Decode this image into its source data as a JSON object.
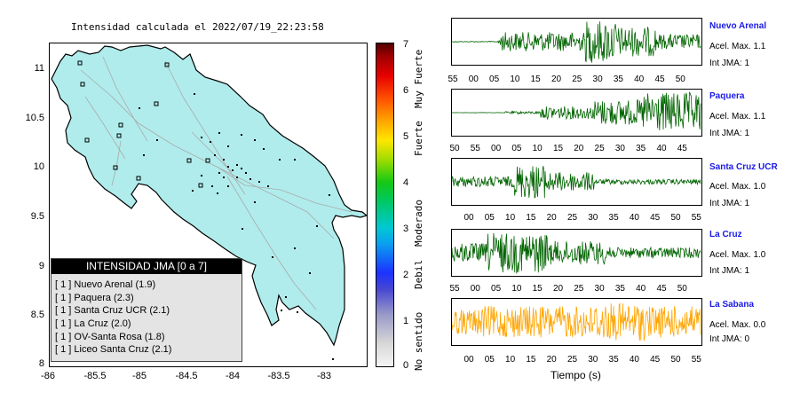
{
  "map": {
    "title": "Intensidad calculada el 2022/07/19_22:23:58",
    "yticks": [
      "11",
      "10.5",
      "10",
      "9.5",
      "9",
      "8.5",
      "8"
    ],
    "xticks": [
      "-86",
      "-85.5",
      "-85",
      "-84.5",
      "-84",
      "-83.5",
      "-83"
    ],
    "legend_title": "INTENSIDAD JMA [0 a 7]",
    "legend_items": [
      "[ 1 ]  Nuevo Arenal (1.9)",
      "[ 1 ]  Paquera (2.3)",
      "[ 1 ]  Santa Cruz UCR (2.1)",
      "[ 1 ]  La Cruz (2.0)",
      "[ 1 ]  OV-Santa Rosa (1.8)",
      "[ 1 ]  Liceo Santa Cruz (2.1)"
    ]
  },
  "scale": {
    "ticks": [
      "7",
      "6",
      "5",
      "4",
      "3",
      "2",
      "1",
      "0"
    ],
    "words": [
      "Muy Fuerte",
      "Fuerte",
      "Moderado",
      "Debil",
      "No sentido"
    ]
  },
  "chart_data": {
    "type": "line",
    "xlabel": "Tiempo (s)",
    "series": [
      {
        "name": "Nuevo Arenal",
        "color": "#006400",
        "accel": "Acel. Max. 1.1",
        "jma": "Int JMA: 1",
        "ticks": [
          "55",
          "00",
          "05",
          "10",
          "15",
          "20",
          "25",
          "30",
          "35",
          "40",
          "45",
          "50"
        ]
      },
      {
        "name": "Paquera",
        "color": "#006400",
        "accel": "Acel. Max. 1.1",
        "jma": "Int JMA: 1",
        "ticks": [
          "50",
          "55",
          "00",
          "05",
          "10",
          "15",
          "20",
          "25",
          "30",
          "35",
          "40",
          "45"
        ]
      },
      {
        "name": "Santa Cruz UCR",
        "color": "#006400",
        "accel": "Acel. Max. 1.0",
        "jma": "Int JMA: 1",
        "ticks": [
          "00",
          "05",
          "10",
          "15",
          "20",
          "25",
          "30",
          "35",
          "40",
          "45",
          "50",
          "55"
        ]
      },
      {
        "name": "La Cruz",
        "color": "#006400",
        "accel": "Acel. Max. 1.0",
        "jma": "Int JMA: 1",
        "ticks": [
          "55",
          "00",
          "05",
          "10",
          "15",
          "20",
          "25",
          "30",
          "35",
          "40",
          "45",
          "50"
        ]
      },
      {
        "name": "La Sabana",
        "color": "#ffa500",
        "accel": "Acel. Max. 0.0",
        "jma": "Int JMA: 0",
        "ticks": [
          "00",
          "05",
          "10",
          "15",
          "20",
          "25",
          "30",
          "35",
          "40",
          "45",
          "50",
          "55"
        ]
      }
    ]
  }
}
